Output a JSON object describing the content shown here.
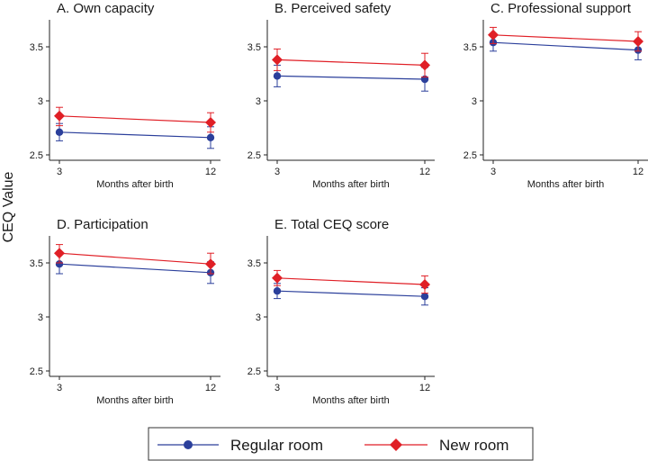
{
  "chart_data": {
    "type": "line",
    "ylabel": "CEQ Value",
    "xlabel": "Months after birth",
    "x": [
      3,
      12
    ],
    "x_tick_labels": [
      "3",
      "12"
    ],
    "ylim": [
      2.45,
      3.75
    ],
    "y_ticks": [
      2.5,
      3,
      3.5
    ],
    "y_tick_labels": [
      "2.5",
      "3",
      "3.5"
    ],
    "colors": {
      "regular": "#2b3f9b",
      "new": "#e01f26"
    },
    "legend": {
      "position": "bottom",
      "regular": "Regular room",
      "new": "New room"
    },
    "panels": [
      {
        "title": "A. Own capacity",
        "series": [
          {
            "name": "Regular room",
            "values": [
              2.71,
              2.66
            ],
            "lower": [
              2.63,
              2.56
            ],
            "upper": [
              2.79,
              2.76
            ]
          },
          {
            "name": "New room",
            "values": [
              2.86,
              2.8
            ],
            "lower": [
              2.77,
              2.71
            ],
            "upper": [
              2.94,
              2.89
            ]
          }
        ]
      },
      {
        "title": "B. Perceived safety",
        "series": [
          {
            "name": "Regular room",
            "values": [
              3.23,
              3.2
            ],
            "lower": [
              3.13,
              3.09
            ],
            "upper": [
              3.33,
              3.31
            ]
          },
          {
            "name": "New room",
            "values": [
              3.38,
              3.33
            ],
            "lower": [
              3.28,
              3.22
            ],
            "upper": [
              3.48,
              3.44
            ]
          }
        ]
      },
      {
        "title": "C. Professional support",
        "series": [
          {
            "name": "Regular room",
            "values": [
              3.54,
              3.47
            ],
            "lower": [
              3.46,
              3.38
            ],
            "upper": [
              3.62,
              3.56
            ]
          },
          {
            "name": "New room",
            "values": [
              3.61,
              3.55
            ],
            "lower": [
              3.53,
              3.46
            ],
            "upper": [
              3.68,
              3.64
            ]
          }
        ]
      },
      {
        "title": "D. Participation",
        "series": [
          {
            "name": "Regular room",
            "values": [
              3.49,
              3.41
            ],
            "lower": [
              3.4,
              3.31
            ],
            "upper": [
              3.58,
              3.51
            ]
          },
          {
            "name": "New room",
            "values": [
              3.59,
              3.49
            ],
            "lower": [
              3.5,
              3.4
            ],
            "upper": [
              3.67,
              3.59
            ]
          }
        ]
      },
      {
        "title": "E. Total CEQ score",
        "series": [
          {
            "name": "Regular room",
            "values": [
              3.24,
              3.19
            ],
            "lower": [
              3.17,
              3.11
            ],
            "upper": [
              3.31,
              3.27
            ]
          },
          {
            "name": "New room",
            "values": [
              3.36,
              3.3
            ],
            "lower": [
              3.29,
              3.22
            ],
            "upper": [
              3.43,
              3.38
            ]
          }
        ]
      }
    ]
  }
}
